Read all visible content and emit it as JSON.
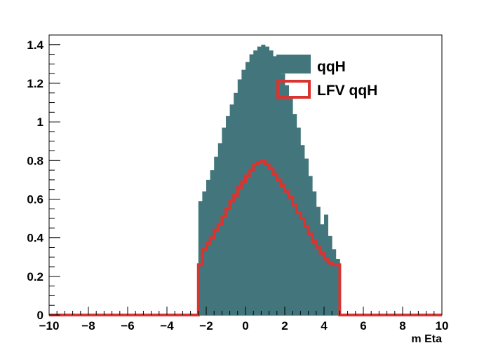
{
  "chart_data": {
    "type": "histogram",
    "xlabel": "m Eta",
    "ylabel": "",
    "xlim": [
      -10,
      10
    ],
    "ylim": [
      0,
      1.45
    ],
    "x_ticks": [
      -10,
      -8,
      -6,
      -4,
      -2,
      0,
      2,
      4,
      6,
      8,
      10
    ],
    "y_ticks": [
      0,
      0.2,
      0.4,
      0.6,
      0.8,
      1,
      1.2,
      1.4
    ],
    "bin_width": 0.2,
    "legend_position": "top-right",
    "grid": false,
    "series": [
      {
        "name": "qqH",
        "style": "filled",
        "color": "#43767c",
        "bin_start": -2.4,
        "values": [
          0.59,
          0.64,
          0.7,
          0.75,
          0.82,
          0.89,
          0.97,
          1.03,
          1.09,
          1.15,
          1.22,
          1.27,
          1.31,
          1.35,
          1.37,
          1.39,
          1.4,
          1.39,
          1.37,
          1.34,
          1.3,
          1.25,
          1.19,
          1.12,
          1.04,
          0.97,
          0.88,
          0.81,
          0.72,
          0.64,
          0.56,
          0.47,
          0.52,
          0.41,
          0.34,
          0.29
        ]
      },
      {
        "name": "LFV qqH",
        "style": "line",
        "color": "#d93430",
        "bin_start": -2.4,
        "values": [
          0.26,
          0.34,
          0.37,
          0.4,
          0.44,
          0.47,
          0.51,
          0.55,
          0.59,
          0.62,
          0.66,
          0.69,
          0.72,
          0.75,
          0.78,
          0.79,
          0.8,
          0.78,
          0.76,
          0.73,
          0.7,
          0.67,
          0.64,
          0.61,
          0.57,
          0.53,
          0.5,
          0.46,
          0.42,
          0.38,
          0.35,
          0.32,
          0.29,
          0.27,
          0.26,
          0.26
        ]
      }
    ]
  }
}
